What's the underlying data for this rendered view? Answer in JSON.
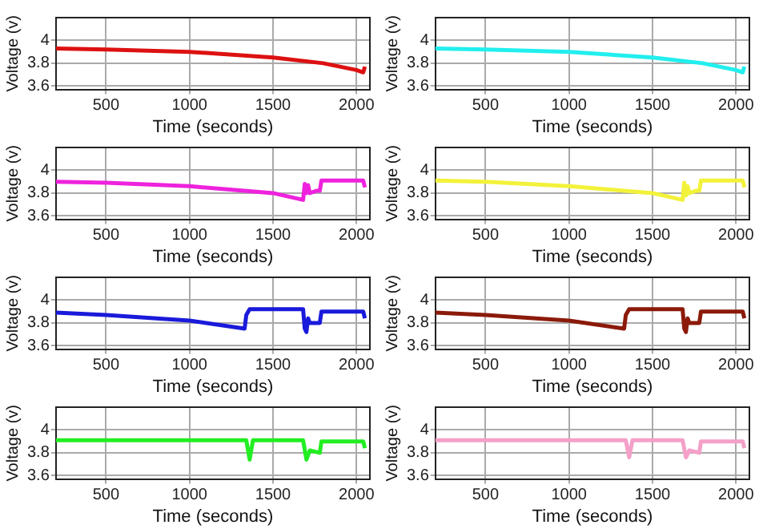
{
  "chart_data": [
    {
      "type": "line",
      "xlabel": "Time (seconds)",
      "ylabel": "Voltage (v)",
      "xlim": [
        200,
        2080
      ],
      "xticks": [
        500,
        1000,
        1500,
        2000
      ],
      "ylim": [
        3.57,
        4.2
      ],
      "yticks": [
        3.6,
        3.8,
        4
      ],
      "grid": true,
      "marker": "none",
      "legend": false,
      "series": [
        {
          "color": "#dd1111",
          "x": [
            200,
            500,
            1000,
            1500,
            1800,
            2000,
            2040,
            2050
          ],
          "values": [
            3.93,
            3.92,
            3.9,
            3.85,
            3.8,
            3.74,
            3.72,
            3.77
          ]
        }
      ]
    },
    {
      "type": "line",
      "xlabel": "Time (seconds)",
      "ylabel": "Voltage (v)",
      "xlim": [
        200,
        2080
      ],
      "xticks": [
        500,
        1000,
        1500,
        2000
      ],
      "ylim": [
        3.57,
        4.2
      ],
      "yticks": [
        3.6,
        3.8,
        4
      ],
      "grid": true,
      "marker": "none",
      "legend": false,
      "series": [
        {
          "color": "#22eeee",
          "x": [
            200,
            500,
            1000,
            1500,
            1800,
            2000,
            2040,
            2050
          ],
          "values": [
            3.93,
            3.92,
            3.9,
            3.85,
            3.8,
            3.74,
            3.72,
            3.77
          ]
        }
      ]
    },
    {
      "type": "line",
      "xlabel": "Time (seconds)",
      "ylabel": "Voltage (v)",
      "xlim": [
        200,
        2080
      ],
      "xticks": [
        500,
        1000,
        1500,
        2000
      ],
      "ylim": [
        3.57,
        4.2
      ],
      "yticks": [
        3.6,
        3.8,
        4
      ],
      "grid": true,
      "marker": "none",
      "legend": false,
      "series": [
        {
          "color": "#ee22dd",
          "x": [
            200,
            500,
            1000,
            1500,
            1680,
            1690,
            1700,
            1710,
            1720,
            1760,
            1780,
            1790,
            2040,
            2050
          ],
          "values": [
            3.9,
            3.89,
            3.86,
            3.8,
            3.74,
            3.88,
            3.8,
            3.87,
            3.8,
            3.82,
            3.82,
            3.91,
            3.91,
            3.85
          ]
        }
      ]
    },
    {
      "type": "line",
      "xlabel": "Time (seconds)",
      "ylabel": "Voltage (v)",
      "xlim": [
        200,
        2080
      ],
      "xticks": [
        500,
        1000,
        1500,
        2000
      ],
      "ylim": [
        3.57,
        4.2
      ],
      "yticks": [
        3.6,
        3.8,
        4
      ],
      "grid": true,
      "marker": "none",
      "legend": false,
      "series": [
        {
          "color": "#f2f23a",
          "x": [
            200,
            500,
            1000,
            1500,
            1680,
            1690,
            1700,
            1710,
            1720,
            1760,
            1780,
            1790,
            2040,
            2050
          ],
          "values": [
            3.91,
            3.9,
            3.86,
            3.8,
            3.74,
            3.89,
            3.78,
            3.86,
            3.8,
            3.82,
            3.82,
            3.91,
            3.91,
            3.85
          ]
        }
      ]
    },
    {
      "type": "line",
      "xlabel": "Time (seconds)",
      "ylabel": "Voltage (v)",
      "xlim": [
        200,
        2080
      ],
      "xticks": [
        500,
        1000,
        1500,
        2000
      ],
      "ylim": [
        3.57,
        4.2
      ],
      "yticks": [
        3.6,
        3.8,
        4
      ],
      "grid": true,
      "marker": "none",
      "legend": false,
      "series": [
        {
          "color": "#1a1adb",
          "x": [
            200,
            500,
            1000,
            1330,
            1340,
            1360,
            1680,
            1690,
            1700,
            1710,
            1720,
            1780,
            1790,
            2040,
            2050
          ],
          "values": [
            3.89,
            3.87,
            3.82,
            3.75,
            3.87,
            3.92,
            3.92,
            3.75,
            3.72,
            3.84,
            3.8,
            3.8,
            3.9,
            3.9,
            3.84
          ]
        }
      ]
    },
    {
      "type": "line",
      "xlabel": "Time (seconds)",
      "ylabel": "Voltage (v)",
      "xlim": [
        200,
        2080
      ],
      "xticks": [
        500,
        1000,
        1500,
        2000
      ],
      "ylim": [
        3.57,
        4.2
      ],
      "yticks": [
        3.6,
        3.8,
        4
      ],
      "grid": true,
      "marker": "none",
      "legend": false,
      "series": [
        {
          "color": "#8b1a0a",
          "x": [
            200,
            500,
            1000,
            1330,
            1340,
            1360,
            1680,
            1690,
            1700,
            1710,
            1720,
            1780,
            1790,
            2040,
            2050
          ],
          "values": [
            3.89,
            3.87,
            3.82,
            3.75,
            3.87,
            3.92,
            3.92,
            3.75,
            3.72,
            3.84,
            3.8,
            3.8,
            3.9,
            3.9,
            3.84
          ]
        }
      ]
    },
    {
      "type": "line",
      "xlabel": "Time (seconds)",
      "ylabel": "Voltage (v)",
      "xlim": [
        200,
        2080
      ],
      "xticks": [
        500,
        1000,
        1500,
        2000
      ],
      "ylim": [
        3.57,
        4.2
      ],
      "yticks": [
        3.6,
        3.8,
        4
      ],
      "grid": true,
      "marker": "none",
      "legend": false,
      "series": [
        {
          "color": "#22ee22",
          "x": [
            200,
            1340,
            1360,
            1380,
            1680,
            1700,
            1720,
            1780,
            1790,
            2040,
            2050
          ],
          "values": [
            3.91,
            3.91,
            3.74,
            3.91,
            3.91,
            3.74,
            3.82,
            3.8,
            3.9,
            3.9,
            3.84
          ]
        }
      ]
    },
    {
      "type": "line",
      "xlabel": "Time (seconds)",
      "ylabel": "Voltage (v)",
      "xlim": [
        200,
        2080
      ],
      "xticks": [
        500,
        1000,
        1500,
        2000
      ],
      "ylim": [
        3.57,
        4.2
      ],
      "yticks": [
        3.6,
        3.8,
        4
      ],
      "grid": true,
      "marker": "none",
      "legend": false,
      "series": [
        {
          "color": "#f4a0c8",
          "x": [
            200,
            1340,
            1360,
            1380,
            1680,
            1700,
            1720,
            1780,
            1790,
            2040,
            2050
          ],
          "values": [
            3.91,
            3.91,
            3.76,
            3.91,
            3.91,
            3.76,
            3.82,
            3.8,
            3.9,
            3.9,
            3.84
          ]
        }
      ]
    }
  ]
}
